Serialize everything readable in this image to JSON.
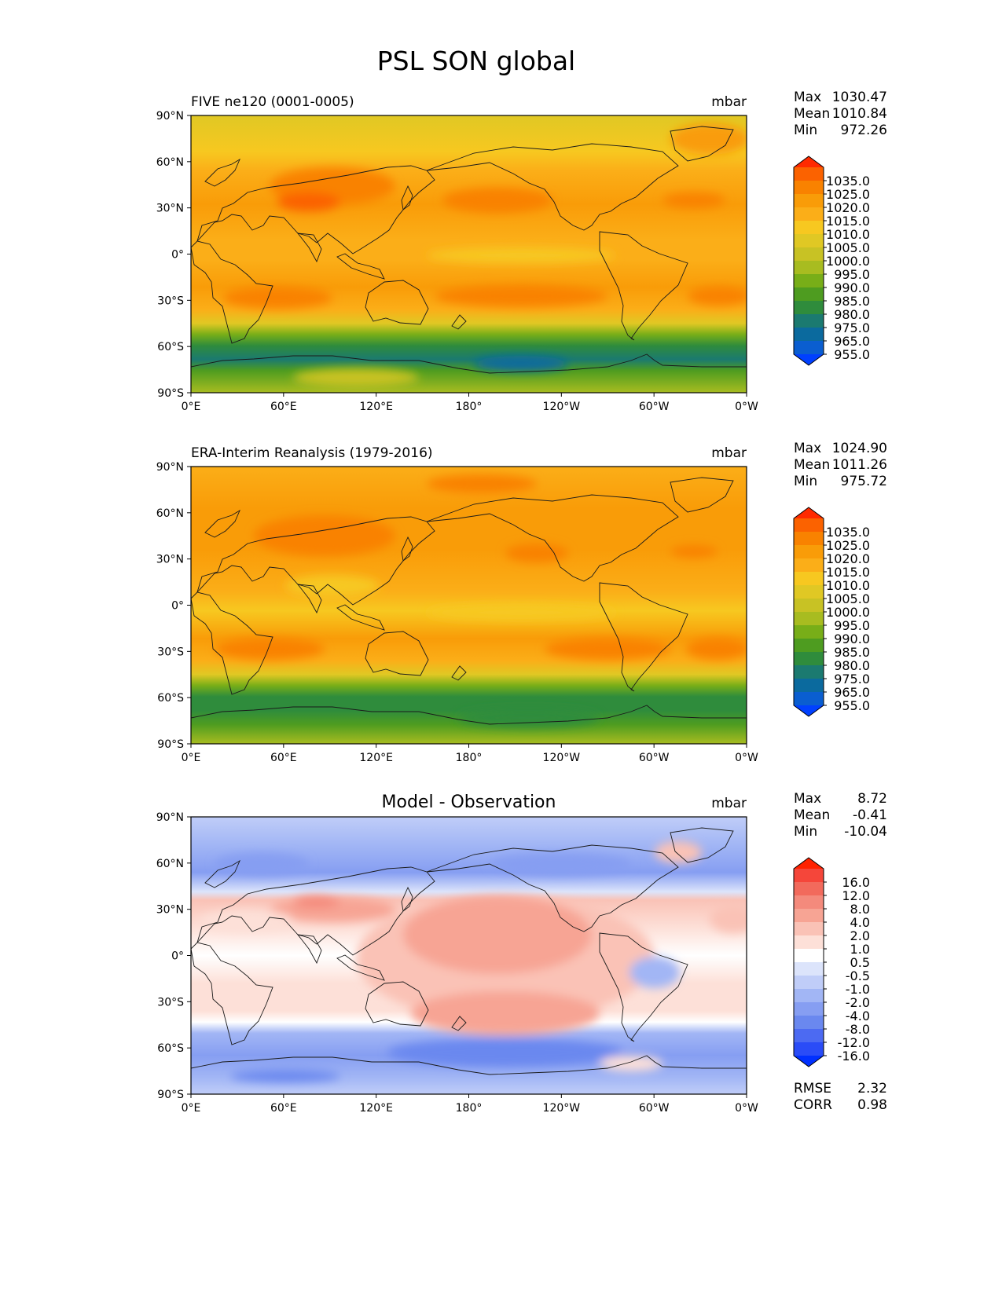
{
  "title": "PSL SON global",
  "colors": {
    "frame": "#000000",
    "coast": "#1a1a1a"
  },
  "chart_data": [
    {
      "type": "heatmap",
      "name": "model",
      "title": "FIVE ne120 (0001-0005)",
      "units": "mbar",
      "stats": [
        {
          "label": "Max",
          "value": "1030.47"
        },
        {
          "label": "Mean",
          "value": "1010.84"
        },
        {
          "label": "Min",
          "value": "972.26"
        }
      ],
      "xticks": [
        "0°E",
        "60°E",
        "120°E",
        "180°",
        "120°W",
        "60°W",
        "0°W"
      ],
      "yticks": [
        "90°N",
        "60°N",
        "30°N",
        "0°",
        "30°S",
        "60°S",
        "90°S"
      ],
      "xlim": [
        0,
        360
      ],
      "ylim": [
        -90,
        90
      ],
      "colorbar": {
        "labels": [
          "1035.0",
          "1025.0",
          "1020.0",
          "1015.0",
          "1010.0",
          "1005.0",
          "1000.0",
          "995.0",
          "990.0",
          "985.0",
          "980.0",
          "975.0",
          "965.0",
          "955.0"
        ],
        "colors": [
          "#ff2a00",
          "#fb6200",
          "#f98200",
          "#f99c08",
          "#fbae18",
          "#f7c820",
          "#e0c824",
          "#c8c224",
          "#a8bc20",
          "#78ae18",
          "#4e9c20",
          "#2f8c3c",
          "#1b7a70",
          "#0b6a9e",
          "#0a5ed0",
          "#0040ff"
        ]
      }
    },
    {
      "type": "heatmap",
      "name": "obs",
      "title": "ERA-Interim Reanalysis (1979-2016)",
      "units": "mbar",
      "stats": [
        {
          "label": "Max",
          "value": "1024.90"
        },
        {
          "label": "Mean",
          "value": "1011.26"
        },
        {
          "label": "Min",
          "value": "975.72"
        }
      ],
      "xticks": [
        "0°E",
        "60°E",
        "120°E",
        "180°",
        "120°W",
        "60°W",
        "0°W"
      ],
      "yticks": [
        "90°N",
        "60°N",
        "30°N",
        "0°",
        "30°S",
        "60°S",
        "90°S"
      ],
      "xlim": [
        0,
        360
      ],
      "ylim": [
        -90,
        90
      ],
      "colorbar": {
        "labels": [
          "1035.0",
          "1025.0",
          "1020.0",
          "1015.0",
          "1010.0",
          "1005.0",
          "1000.0",
          "995.0",
          "990.0",
          "985.0",
          "980.0",
          "975.0",
          "965.0",
          "955.0"
        ],
        "colors": [
          "#ff2a00",
          "#fb6200",
          "#f98200",
          "#f99c08",
          "#fbae18",
          "#f7c820",
          "#e0c824",
          "#c8c224",
          "#a8bc20",
          "#78ae18",
          "#4e9c20",
          "#2f8c3c",
          "#1b7a70",
          "#0b6a9e",
          "#0a5ed0",
          "#0040ff"
        ]
      }
    },
    {
      "type": "heatmap",
      "name": "diff",
      "title": "Model - Observation",
      "units": "mbar",
      "stats": [
        {
          "label": "Max",
          "value": "8.72"
        },
        {
          "label": "Mean",
          "value": "-0.41"
        },
        {
          "label": "Min",
          "value": "-10.04"
        }
      ],
      "xticks": [
        "0°E",
        "60°E",
        "120°E",
        "180°",
        "120°W",
        "60°W",
        "0°W"
      ],
      "yticks": [
        "90°N",
        "60°N",
        "30°N",
        "0°",
        "30°S",
        "60°S",
        "90°S"
      ],
      "xlim": [
        0,
        360
      ],
      "ylim": [
        -90,
        90
      ],
      "colorbar": {
        "labels": [
          "16.0",
          "12.0",
          "8.0",
          "4.0",
          "2.0",
          "1.0",
          "0.5",
          "-0.5",
          "-1.0",
          "-2.0",
          "-4.0",
          "-8.0",
          "-12.0",
          "-16.0"
        ],
        "colors": [
          "#ff2200",
          "#f5463a",
          "#f26a5c",
          "#f48a7c",
          "#f7a494",
          "#fac2b6",
          "#fde0d8",
          "#ffffff",
          "#dce4fb",
          "#c0cdf8",
          "#a2b6f5",
          "#869ef2",
          "#6a88ef",
          "#4c6af2",
          "#2a4cf7",
          "#0030ff"
        ]
      },
      "rmse": {
        "label": "RMSE",
        "value": "2.32"
      },
      "corr": {
        "label": "CORR",
        "value": "0.98"
      }
    }
  ]
}
